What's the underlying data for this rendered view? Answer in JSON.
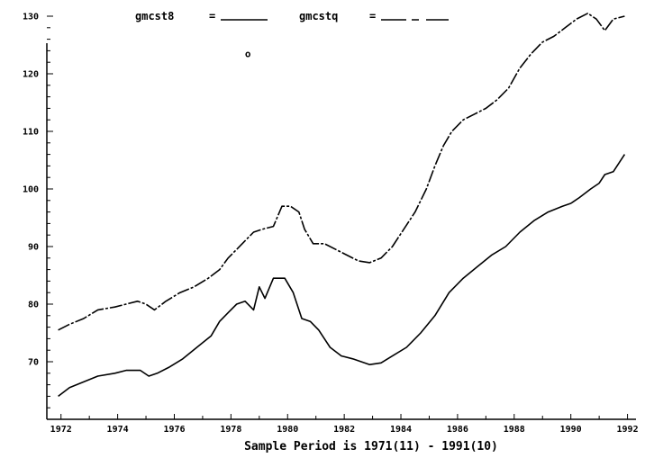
{
  "chart_data": {
    "type": "line",
    "title": "",
    "xlabel": "Sample Period is 1971(11) - 1991(10)",
    "ylabel": "",
    "xlim": [
      1971.5,
      1992.3
    ],
    "ylim": [
      60,
      130
    ],
    "yticks": [
      70,
      80,
      90,
      100,
      110,
      120,
      130
    ],
    "ytick_labels": [
      "70",
      "80",
      "90",
      "100",
      "110",
      "120",
      "130"
    ],
    "xticks": [
      1972,
      1974,
      1976,
      1978,
      1980,
      1982,
      1984,
      1986,
      1988,
      1990,
      1992
    ],
    "xtick_labels": [
      "1972",
      "1974",
      "1976",
      "1978",
      "1980",
      "1982",
      "1984",
      "1986",
      "1988",
      "1990",
      "1992"
    ],
    "grid": false,
    "legend_position": "top",
    "series": [
      {
        "name": "gmcst8",
        "color": "#000000",
        "style": "solid",
        "x": [
          1971.9,
          1972.3,
          1972.8,
          1973.3,
          1973.9,
          1974.3,
          1974.8,
          1975.1,
          1975.4,
          1975.8,
          1976.3,
          1976.8,
          1977.3,
          1977.6,
          1977.9,
          1978.2,
          1978.5,
          1978.8,
          1979.0,
          1979.2,
          1979.5,
          1979.9,
          1980.2,
          1980.5,
          1980.8,
          1981.1,
          1981.5,
          1981.9,
          1982.3,
          1982.6,
          1982.9,
          1983.3,
          1983.7,
          1984.2,
          1984.7,
          1985.2,
          1985.7,
          1986.2,
          1986.7,
          1987.2,
          1987.7,
          1988.2,
          1988.7,
          1989.2,
          1989.7,
          1990.0,
          1990.3,
          1990.7,
          1991.0,
          1991.2,
          1991.5,
          1991.9
        ],
        "y": [
          64,
          65.5,
          66.5,
          67.5,
          68,
          68.5,
          68.5,
          67.5,
          68,
          69,
          70.5,
          72.5,
          74.5,
          77,
          78.5,
          80,
          80.5,
          79,
          83,
          81,
          84.5,
          84.5,
          82,
          77.5,
          77,
          75.5,
          72.5,
          71,
          70.5,
          70,
          69.5,
          69.8,
          71,
          72.5,
          75,
          78,
          82,
          84.5,
          86.5,
          88.5,
          90,
          92.5,
          94.5,
          96,
          97,
          97.5,
          98.5,
          100,
          101,
          102.5,
          103,
          106
        ]
      },
      {
        "name": "gmcstq",
        "color": "#000000",
        "style": "dashed",
        "x": [
          1971.9,
          1972.3,
          1972.8,
          1973.3,
          1973.9,
          1974.3,
          1974.7,
          1975.0,
          1975.3,
          1975.7,
          1976.2,
          1976.7,
          1977.2,
          1977.6,
          1977.9,
          1978.2,
          1978.5,
          1978.8,
          1979.1,
          1979.5,
          1979.8,
          1980.1,
          1980.4,
          1980.6,
          1980.9,
          1981.3,
          1981.7,
          1982.1,
          1982.5,
          1982.9,
          1983.3,
          1983.7,
          1984.1,
          1984.5,
          1984.9,
          1985.2,
          1985.5,
          1985.8,
          1986.2,
          1986.6,
          1987.0,
          1987.4,
          1987.8,
          1988.2,
          1988.6,
          1989.0,
          1989.4,
          1989.8,
          1990.2,
          1990.6,
          1990.9,
          1991.2,
          1991.5,
          1991.9
        ],
        "y": [
          75.5,
          76.5,
          77.5,
          79,
          79.5,
          80,
          80.5,
          80,
          79,
          80.5,
          82,
          83,
          84.5,
          86,
          88,
          89.5,
          91,
          92.5,
          93,
          93.5,
          97,
          97,
          96,
          93,
          90.5,
          90.5,
          89.5,
          88.5,
          87.5,
          87.2,
          88,
          90,
          93,
          96,
          100,
          104,
          107.5,
          110,
          112,
          113,
          114,
          115.5,
          117.5,
          121,
          123.5,
          125.5,
          126.5,
          128,
          129.5,
          130.5,
          129.5,
          127.5,
          129.5,
          130
        ]
      }
    ],
    "annotations": [
      {
        "text": "o",
        "x": 1978.6,
        "y": 123.5
      }
    ]
  }
}
